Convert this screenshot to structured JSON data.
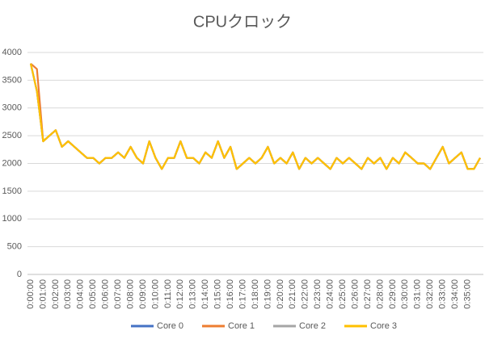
{
  "chart_data": {
    "type": "line",
    "title": "CPUクロック",
    "categories": [
      "0:00:00",
      null,
      "0:01:00",
      null,
      "0:02:00",
      null,
      "0:03:00",
      null,
      "0:04:00",
      null,
      "0:05:00",
      null,
      "0:06:00",
      null,
      "0:07:00",
      null,
      "0:08:00",
      null,
      "0:09:00",
      null,
      "0:10:00",
      null,
      "0:11:00",
      null,
      "0:12:00",
      null,
      "0:13:00",
      null,
      "0:14:00",
      null,
      "0:15:00",
      null,
      "0:16:00",
      null,
      "0:17:00",
      null,
      "0:18:00",
      null,
      "0:19:00",
      null,
      "0:20:00",
      null,
      "0:21:00",
      null,
      "0:22:00",
      null,
      "0:23:00",
      null,
      "0:24:00",
      null,
      "0:25:00",
      null,
      "0:26:00",
      null,
      "0:27:00",
      null,
      "0:28:00",
      null,
      "0:29:00",
      null,
      "0:30:00",
      null,
      "0:31:00",
      null,
      "0:32:00",
      null,
      "0:33:00",
      null,
      "0:34:00",
      null,
      "0:35:00",
      null,
      null
    ],
    "series": [
      {
        "name": "Core 0",
        "color": "#4472c4",
        "values": [
          3800,
          3300,
          2400,
          2500,
          2600,
          2300,
          2400,
          2300,
          2200,
          2100,
          2100,
          2000,
          2100,
          2100,
          2200,
          2100,
          2300,
          2100,
          2000,
          2400,
          2100,
          1900,
          2100,
          2100,
          2400,
          2100,
          2100,
          2000,
          2200,
          2100,
          2400,
          2100,
          2300,
          1900,
          2000,
          2100,
          2000,
          2100,
          2300,
          2000,
          2100,
          2000,
          2200,
          1900,
          2100,
          2000,
          2100,
          2000,
          1900,
          2100,
          2000,
          2100,
          2000,
          1900,
          2100,
          2000,
          2100,
          1900,
          2100,
          2000,
          2200,
          2100,
          2000,
          2000,
          1900,
          2100,
          2300,
          2000,
          2100,
          2200,
          1900,
          1900,
          2100
        ]
      },
      {
        "name": "Core 1",
        "color": "#ed7d31",
        "values": [
          3800,
          3700,
          2400,
          2500,
          2600,
          2300,
          2400,
          2300,
          2200,
          2100,
          2100,
          2000,
          2100,
          2100,
          2200,
          2100,
          2300,
          2100,
          2000,
          2400,
          2100,
          1900,
          2100,
          2100,
          2400,
          2100,
          2100,
          2000,
          2200,
          2100,
          2400,
          2100,
          2300,
          1900,
          2000,
          2100,
          2000,
          2100,
          2300,
          2000,
          2100,
          2000,
          2200,
          1900,
          2100,
          2000,
          2100,
          2000,
          1900,
          2100,
          2000,
          2100,
          2000,
          1900,
          2100,
          2000,
          2100,
          1900,
          2100,
          2000,
          2200,
          2100,
          2000,
          2000,
          1900,
          2100,
          2300,
          2000,
          2100,
          2200,
          1900,
          1900,
          2100
        ]
      },
      {
        "name": "Core 2",
        "color": "#a5a5a5",
        "values": [
          3800,
          3300,
          2400,
          2500,
          2600,
          2300,
          2400,
          2300,
          2200,
          2100,
          2100,
          2000,
          2100,
          2100,
          2200,
          2100,
          2300,
          2100,
          2000,
          2400,
          2100,
          1900,
          2100,
          2100,
          2400,
          2100,
          2100,
          2000,
          2200,
          2100,
          2400,
          2100,
          2300,
          1900,
          2000,
          2100,
          2000,
          2100,
          2300,
          2000,
          2100,
          2000,
          2200,
          1900,
          2100,
          2000,
          2100,
          2000,
          1900,
          2100,
          2000,
          2100,
          2000,
          1900,
          2100,
          2000,
          2100,
          1900,
          2100,
          2000,
          2200,
          2100,
          2000,
          2000,
          1900,
          2100,
          2300,
          2000,
          2100,
          2200,
          1900,
          1900,
          2100
        ]
      },
      {
        "name": "Core 3",
        "color": "#ffc000",
        "values": [
          3800,
          3300,
          2400,
          2500,
          2600,
          2300,
          2400,
          2300,
          2200,
          2100,
          2100,
          2000,
          2100,
          2100,
          2200,
          2100,
          2300,
          2100,
          2000,
          2400,
          2100,
          1900,
          2100,
          2100,
          2400,
          2100,
          2100,
          2000,
          2200,
          2100,
          2400,
          2100,
          2300,
          1900,
          2000,
          2100,
          2000,
          2100,
          2300,
          2000,
          2100,
          2000,
          2200,
          1900,
          2100,
          2000,
          2100,
          2000,
          1900,
          2100,
          2000,
          2100,
          2000,
          1900,
          2100,
          2000,
          2100,
          1900,
          2100,
          2000,
          2200,
          2100,
          2000,
          2000,
          1900,
          2100,
          2300,
          2000,
          2100,
          2200,
          1900,
          1900,
          2100
        ]
      }
    ],
    "ylim": [
      0,
      4000
    ],
    "yticks": [
      0,
      500,
      1000,
      1500,
      2000,
      2500,
      3000,
      3500,
      4000
    ],
    "grid": true,
    "legend": "bottom"
  }
}
